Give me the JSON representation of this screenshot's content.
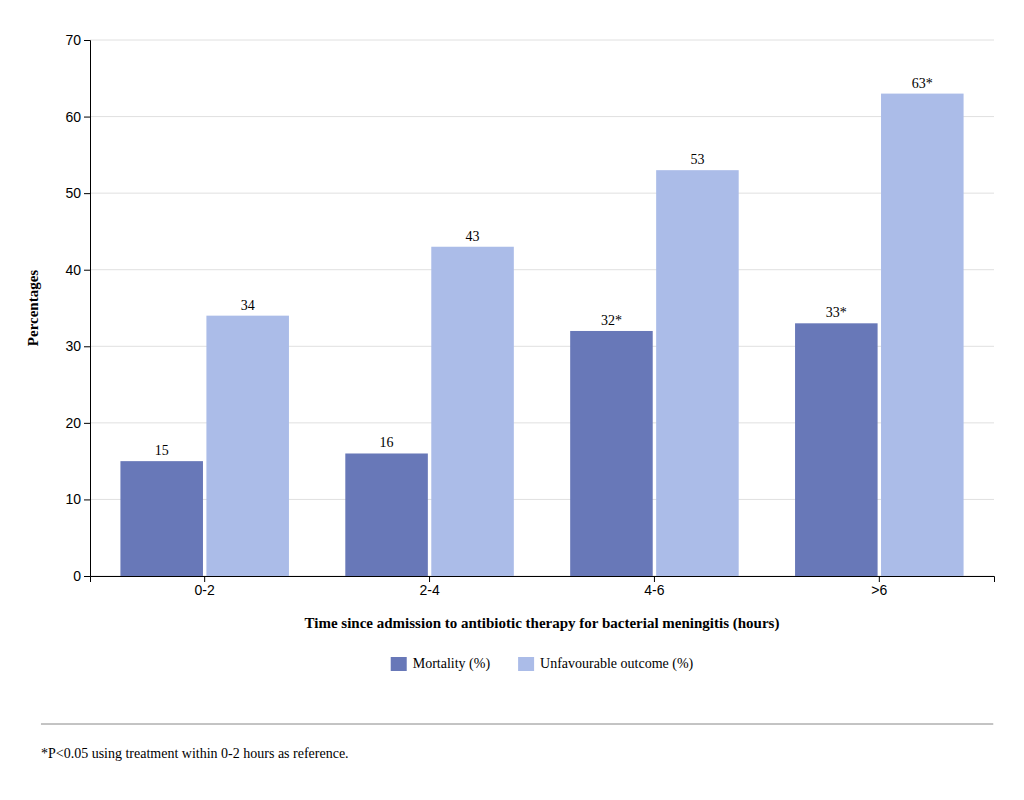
{
  "chart_data": {
    "type": "bar",
    "categories": [
      "0-2",
      "2-4",
      "4-6",
      ">6"
    ],
    "series": [
      {
        "name": "Mortality (%)",
        "color": "#6878B8",
        "values": [
          15,
          16,
          32,
          33
        ],
        "value_labels": [
          "15",
          "16",
          "32*",
          "33*"
        ]
      },
      {
        "name": "Unfavourable outcome (%)",
        "color": "#ABBCE8",
        "values": [
          34,
          43,
          53,
          63
        ],
        "value_labels": [
          "34",
          "43",
          "53",
          "63*"
        ]
      }
    ],
    "xlabel": "Time since admission to antibiotic therapy for bacterial meningitis (hours)",
    "ylabel": "Percentages",
    "ylim": [
      0,
      70
    ],
    "yticks": [
      0,
      10,
      20,
      30,
      40,
      50,
      60,
      70
    ],
    "grid": true,
    "legend": "bottom",
    "data_labels": true,
    "footnote": "*P<0.05 using treatment within 0-2 hours as reference."
  }
}
